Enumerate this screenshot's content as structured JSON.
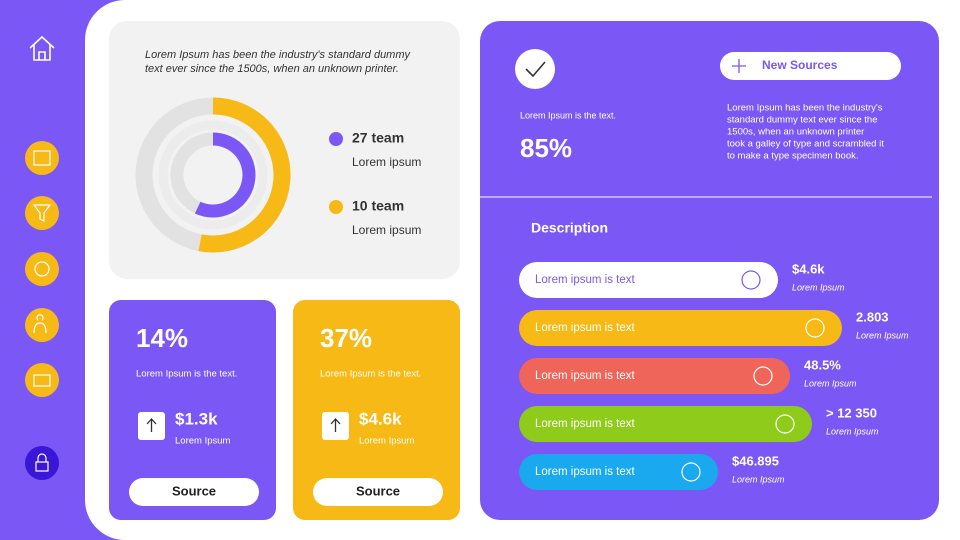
{
  "summary": {
    "text": [
      "Lorem Ipsum has been the industry's standard dummy",
      "text ever since the 1500s, when an unknown printer."
    ],
    "donut": {
      "series": [
        {
          "name": "27 team",
          "label": "Lorem ipsum",
          "color": "#7b57f5",
          "value": 57
        },
        {
          "name": "10 team",
          "label": "Lorem ipsum",
          "color": "#f6b916",
          "value": 53
        }
      ]
    }
  },
  "cards": [
    {
      "percent": "14%",
      "caption": "Lorem Ipsum is the text.",
      "amount": "$1.3k",
      "amount_label": "Lorem Ipsum",
      "button": "Source",
      "color": "#7b57f5"
    },
    {
      "percent": "37%",
      "caption": "Lorem Ipsum is the text.",
      "amount": "$4.6k",
      "amount_label": "Lorem Ipsum",
      "button": "Source",
      "color": "#f6b916"
    }
  ],
  "panel": {
    "caption": "Lorem Ipsum is the text.",
    "percent": "85%",
    "button": "New Sources",
    "paragraph": [
      "Lorem Ipsum has been the industry's",
      "standard dummy text ever since the",
      "1500s, when an unknown printer",
      "took a galley  of type and scrambled it",
      "to make a type specimen book."
    ],
    "description_title": "Description",
    "items": [
      {
        "text": "Lorem ipsum is text",
        "value": "$4.6k",
        "value_label": "Lorem Ipsum",
        "color": "#ffffff"
      },
      {
        "text": "Lorem ipsum is text",
        "value": "2.803",
        "value_label": "Lorem Ipsum",
        "color": "#f6b916"
      },
      {
        "text": "Lorem ipsum is text",
        "value": "48.5%",
        "value_label": "Lorem Ipsum",
        "color": "#f0655a"
      },
      {
        "text": "Lorem ipsum is text",
        "value": "> 12 350",
        "value_label": "Lorem Ipsum",
        "color": "#8fcb1a"
      },
      {
        "text": "Lorem ipsum is text",
        "value": "$46.895",
        "value_label": "Lorem Ipsum",
        "color": "#1aa9ee"
      }
    ]
  }
}
